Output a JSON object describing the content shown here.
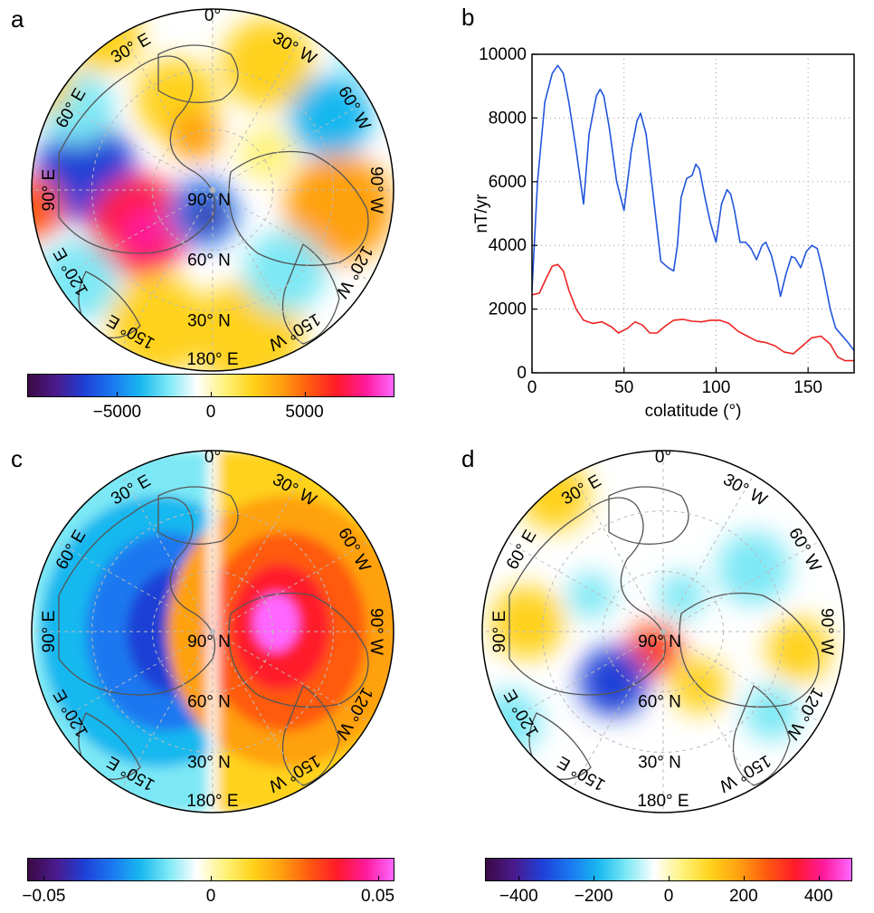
{
  "panels": {
    "a": {
      "letter": "a"
    },
    "b": {
      "letter": "b"
    },
    "c": {
      "letter": "c"
    },
    "d": {
      "letter": "d"
    }
  },
  "map_labels": {
    "top": "0",
    "bottom": "180",
    "bottom_e": "E",
    "left": "90",
    "left_e": "E",
    "right": "90",
    "right_w": "W",
    "tl1": "30",
    "tl1_e": "E",
    "tl2": "60",
    "tl2_e": "E",
    "tr1": "30",
    "tr1_w": "W",
    "tr2": "60",
    "tr2_w": "W",
    "bl1": "120",
    "bl1_e": "E",
    "bl2": "150",
    "bl2_e": "E",
    "br1": "120",
    "br1_w": "W",
    "br2": "150",
    "br2_w": "W",
    "lat90": "90",
    "lat60": "60",
    "lat30": "30",
    "lat_n": "N"
  },
  "colorbars": {
    "a": {
      "ticks": [
        "−5000",
        "0",
        "5000"
      ],
      "values": [
        -5000,
        0,
        5000
      ],
      "range": [
        -9800,
        9800
      ]
    },
    "c": {
      "ticks": [
        "−0.05",
        "0",
        "0.05"
      ],
      "values": [
        -0.05,
        0,
        0.05
      ],
      "range": [
        -0.055,
        0.055
      ]
    },
    "d": {
      "ticks": [
        "−400",
        "−200",
        "0",
        "200",
        "400"
      ],
      "values": [
        -400,
        -200,
        0,
        200,
        400
      ],
      "range": [
        -490,
        490
      ]
    }
  },
  "colors": {
    "palette": [
      "#3b0a45",
      "#4a1a8c",
      "#1f3fd6",
      "#1a78f0",
      "#19b8f0",
      "#7de8f5",
      "#ffffff",
      "#fff27a",
      "#ffd21a",
      "#ffa010",
      "#ff5a10",
      "#ff1a2a",
      "#ff1a9a",
      "#ff66ff"
    ],
    "coast": "#555555",
    "grid": "#bbbbbb",
    "series_blue": "#2255dd",
    "series_red": "#ee2222"
  },
  "chart_data": [
    {
      "type": "line",
      "panel": "b",
      "xlabel": "colatitude (°)",
      "ylabel": "nT/yr",
      "xlim": [
        0,
        175
      ],
      "ylim": [
        0,
        10000
      ],
      "xticks": [
        0,
        50,
        100,
        150
      ],
      "yticks": [
        0,
        2000,
        4000,
        6000,
        8000,
        10000
      ],
      "xtick_labels": [
        "0",
        "50",
        "100",
        "150"
      ],
      "ytick_labels": [
        "0",
        "2000",
        "4000",
        "6000",
        "8000",
        "10000"
      ],
      "grid": true,
      "series": [
        {
          "color": "#2255dd",
          "x": [
            0,
            3,
            7,
            11,
            14,
            17,
            20,
            24,
            28,
            31,
            35,
            37,
            39,
            42,
            46,
            50,
            54,
            57,
            59,
            62,
            66,
            70,
            74,
            77,
            79,
            81,
            84,
            87,
            89,
            91,
            94,
            97,
            100,
            103,
            106,
            108,
            110,
            113,
            116,
            119,
            122,
            125,
            127,
            130,
            133,
            135,
            138,
            141,
            143,
            146,
            149,
            152,
            155,
            158,
            162,
            165,
            168,
            171,
            175
          ],
          "y": [
            2600,
            6000,
            8500,
            9400,
            9650,
            9400,
            8500,
            7000,
            5300,
            7500,
            8700,
            8900,
            8700,
            7700,
            6000,
            5100,
            7000,
            7900,
            8150,
            7500,
            5500,
            3500,
            3300,
            3200,
            4000,
            5500,
            6100,
            6200,
            6550,
            6400,
            5500,
            4700,
            4100,
            5300,
            5750,
            5600,
            5100,
            4100,
            4100,
            3900,
            3550,
            4000,
            4100,
            3700,
            3000,
            2400,
            3100,
            3650,
            3600,
            3300,
            3800,
            4000,
            3900,
            3200,
            2000,
            1400,
            1200,
            1000,
            700
          ]
        },
        {
          "color": "#ee2222",
          "x": [
            0,
            4,
            8,
            11,
            14,
            17,
            20,
            24,
            28,
            33,
            38,
            43,
            47,
            52,
            56,
            60,
            64,
            68,
            72,
            77,
            82,
            87,
            92,
            97,
            102,
            107,
            112,
            117,
            122,
            127,
            132,
            137,
            142,
            147,
            152,
            157,
            162,
            166,
            170,
            175
          ],
          "y": [
            2450,
            2500,
            3000,
            3350,
            3400,
            3200,
            2600,
            2000,
            1650,
            1550,
            1600,
            1450,
            1250,
            1400,
            1600,
            1500,
            1250,
            1250,
            1450,
            1650,
            1680,
            1620,
            1600,
            1650,
            1650,
            1550,
            1300,
            1150,
            1000,
            950,
            850,
            650,
            600,
            850,
            1100,
            1150,
            900,
            500,
            380,
            380
          ]
        }
      ]
    }
  ]
}
